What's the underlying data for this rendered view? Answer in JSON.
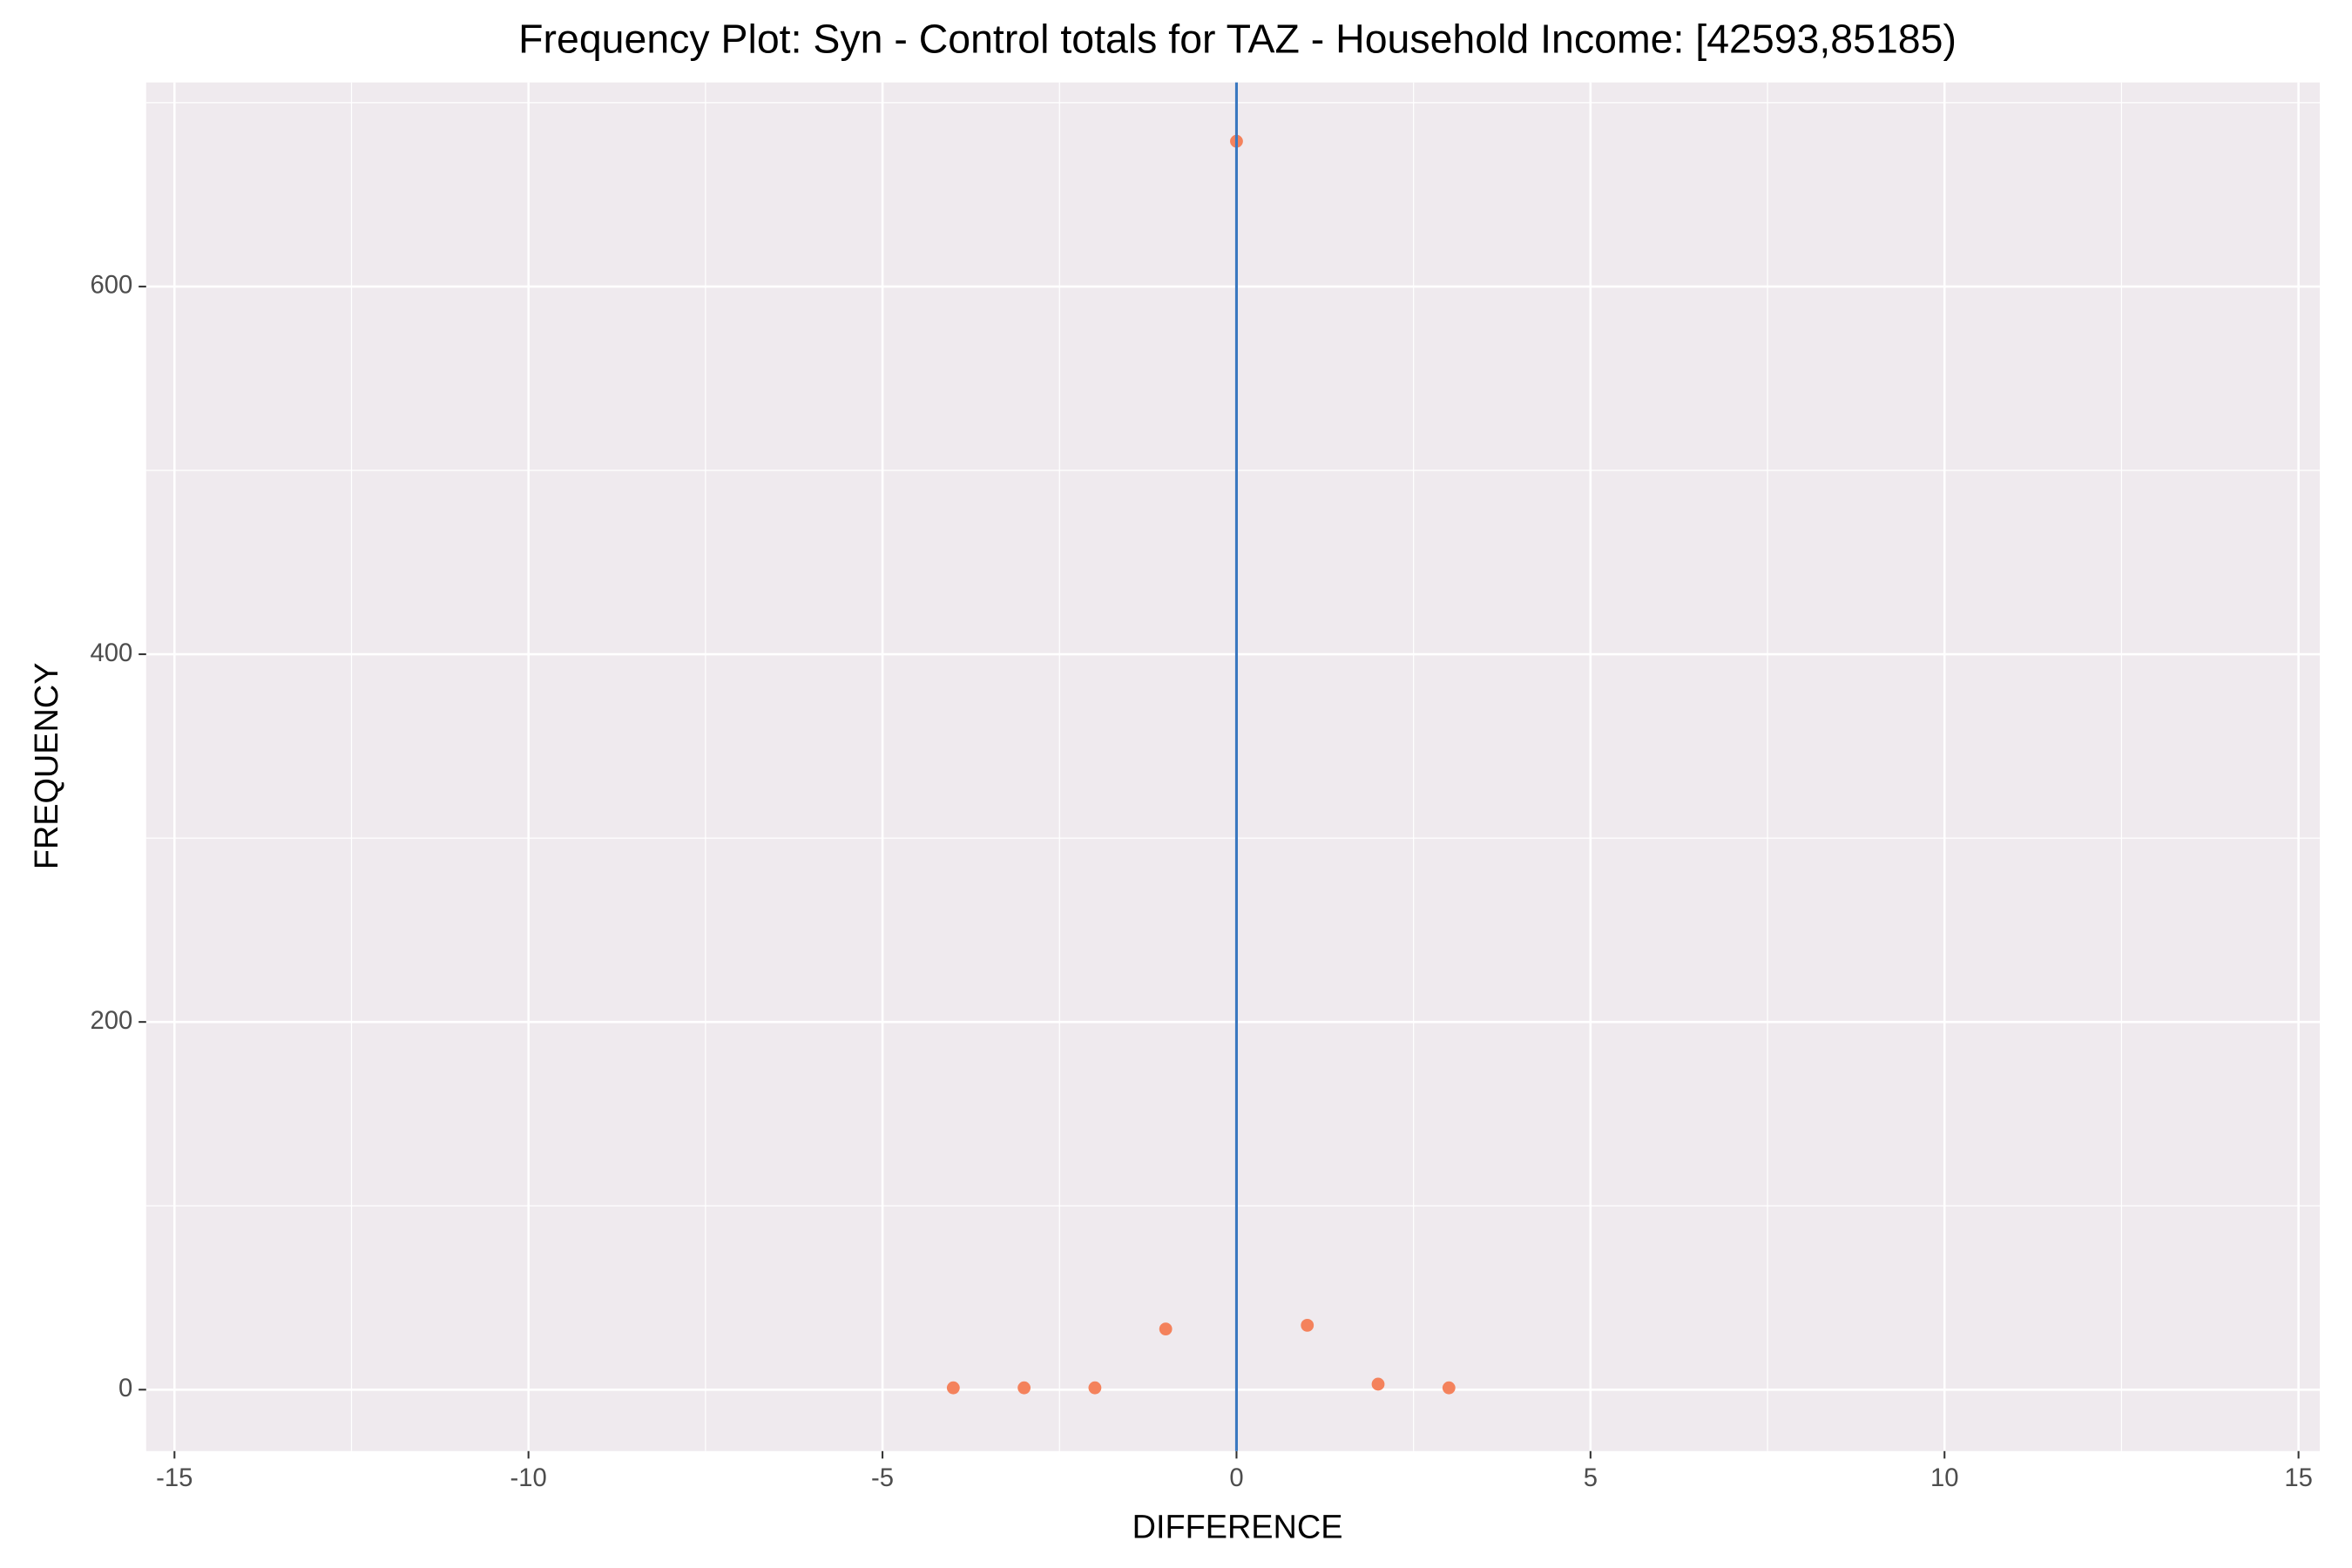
{
  "chart_data": {
    "type": "scatter",
    "title": "Frequency Plot: Syn - Control totals for TAZ - Household Income: [42593,85185)",
    "x_label": "DIFFERENCE",
    "y_label": "FREQUENCY",
    "x": [
      -4,
      -3,
      -2,
      -1,
      0,
      1,
      2,
      3
    ],
    "series": [
      {
        "name": "FREQUENCY",
        "color": "#f4825c",
        "values": [
          1,
          1,
          1,
          33,
          679,
          35,
          3,
          1
        ]
      }
    ],
    "xlim": [
      -15.4,
      15.3
    ],
    "ylim": [
      -33.4,
      711
    ],
    "xticks": [
      -15,
      -10,
      -5,
      0,
      5,
      10,
      15
    ],
    "yticks": [
      0,
      200,
      400,
      600
    ],
    "x_minor_ticks": [
      -12.5,
      -7.5,
      -2.5,
      2.5,
      7.5,
      12.5
    ],
    "y_minor_ticks": [
      100,
      300,
      500,
      700
    ],
    "vline": {
      "x": 0,
      "color": "#3a78c0"
    },
    "grid": true,
    "legend": false
  }
}
